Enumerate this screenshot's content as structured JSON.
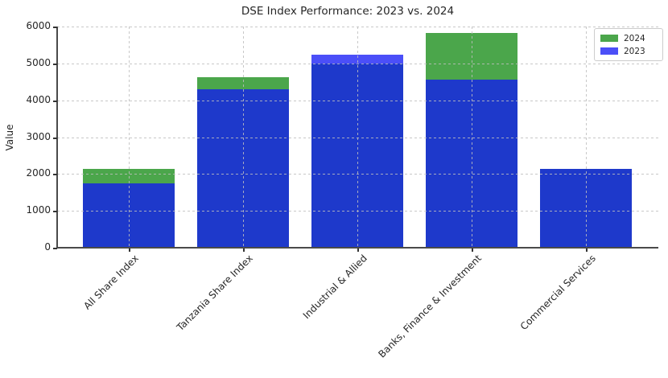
{
  "title": "DSE Index Performance: 2023 vs. 2024",
  "axes": {
    "ylabel": "Value",
    "yticks": [
      0,
      1000,
      2000,
      3000,
      4000,
      5000,
      6000
    ],
    "ylim": [
      0,
      6000
    ]
  },
  "legend": {
    "position": "upper right",
    "items": [
      {
        "label": "2024",
        "swatch_color": "#4BA64B"
      },
      {
        "label": "2023",
        "swatch_color": "#4B4FF7"
      }
    ]
  },
  "colors": {
    "green_2024": "#4BA64B",
    "blue_2023_rgba": "rgba(15,20,245,0.75)",
    "grid": "#c6c6c6",
    "spine": "#4a4a4a",
    "text": "#262626"
  },
  "chart_data": {
    "type": "bar",
    "layout": "overlaid",
    "title": "DSE Index Performance: 2023 vs. 2024",
    "xlabel": "",
    "ylabel": "Value",
    "ylim": [
      0,
      6000
    ],
    "grid": true,
    "legend_position": "upper right",
    "categories": [
      "All Share Index",
      "Tanzania Share Index",
      "Industrial & Allied",
      "Banks, Finance & Investment",
      "Commercial Services"
    ],
    "series": [
      {
        "name": "2024",
        "color": "#4BA64B",
        "values": [
          2130,
          4630,
          5000,
          5830,
          2130
        ]
      },
      {
        "name": "2023",
        "color": "rgba(15,20,245,0.75)",
        "values": [
          1750,
          4310,
          5230,
          4560,
          2150
        ]
      }
    ]
  }
}
